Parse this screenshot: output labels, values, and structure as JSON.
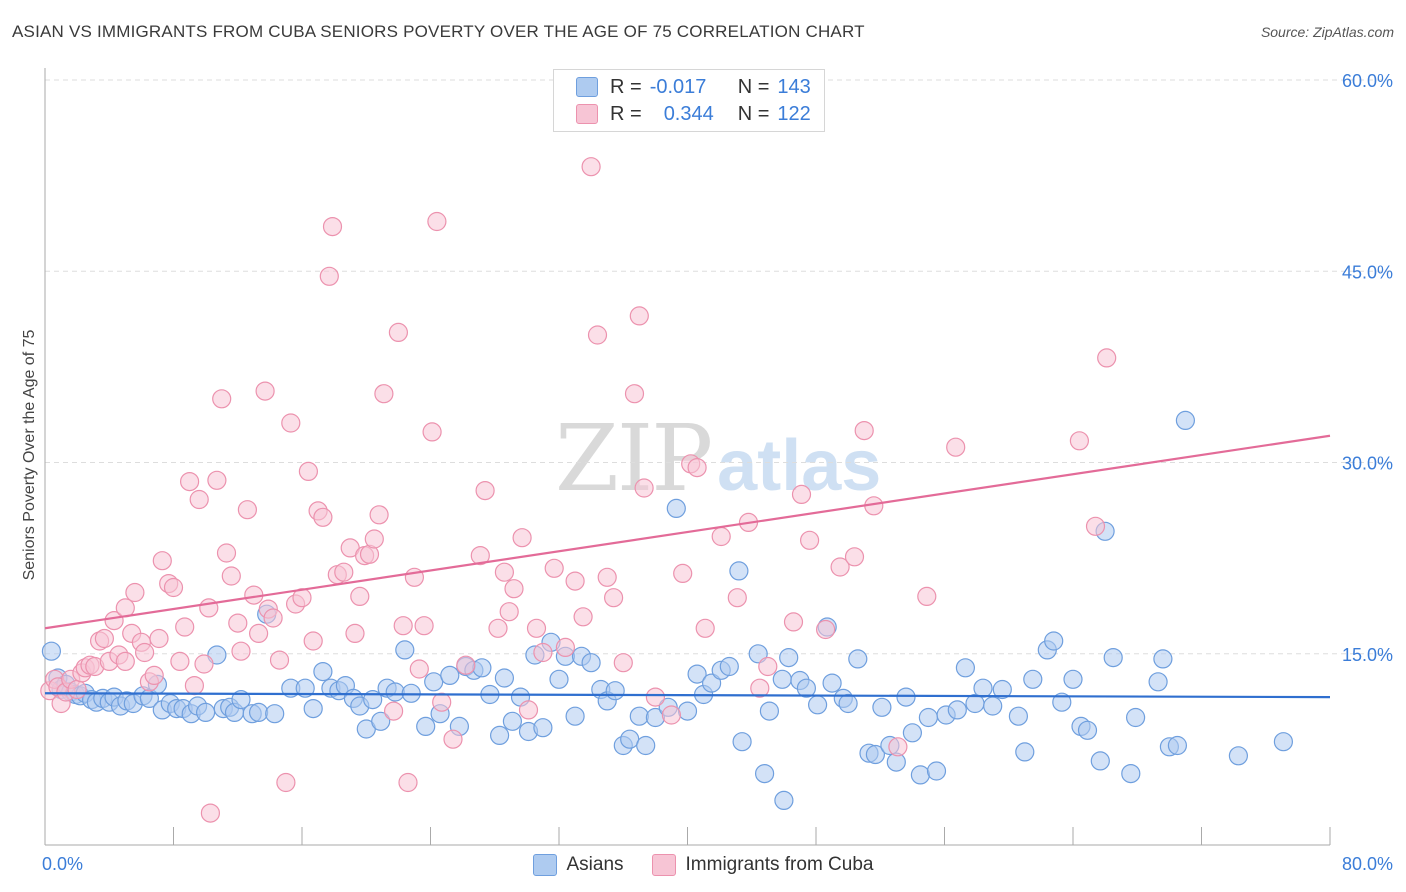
{
  "title": "ASIAN VS IMMIGRANTS FROM CUBA SENIORS POVERTY OVER THE AGE OF 75 CORRELATION CHART",
  "source": "Source: ZipAtlas.com",
  "watermark": {
    "zip": "ZIP",
    "atlas": "atlas"
  },
  "legend": {
    "rows": [
      {
        "r_label": "R =",
        "r_value": "-0.017",
        "n_label": "N =",
        "n_value": "143"
      },
      {
        "r_label": "R =",
        "r_value": "0.344",
        "n_label": "N =",
        "n_value": "122"
      }
    ]
  },
  "bottom_legend": [
    "Asians",
    "Immigrants from Cuba"
  ],
  "chart_data": {
    "type": "scatter",
    "title": "ASIAN VS IMMIGRANTS FROM CUBA SENIORS POVERTY OVER THE AGE OF 75 CORRELATION CHART",
    "xlabel": "",
    "ylabel": "Seniors Poverty Over the Age of 75",
    "xlim": [
      0,
      80
    ],
    "ylim": [
      0,
      60
    ],
    "x_tick_labels": [
      "0.0%",
      "80.0%"
    ],
    "y_ticks": [
      15,
      30,
      45,
      60
    ],
    "y_tick_labels": [
      "15.0%",
      "30.0%",
      "45.0%",
      "60.0%"
    ],
    "grid": "horizontal dashed",
    "legend_position": "top-center",
    "colors": {
      "asians_fill": "#aecbf0",
      "asians_stroke": "#6f9fde",
      "asians_line": "#2f6fcf",
      "cuba_fill": "#f7c5d5",
      "cuba_stroke": "#ec92ae",
      "cuba_line": "#e36b98",
      "tick_label": "#3b7dd8",
      "grid": "#dddddd"
    },
    "series": [
      {
        "name": "Asians",
        "trend": {
          "x": [
            0,
            80
          ],
          "y": [
            11.9,
            11.6
          ]
        },
        "points": [
          [
            0.4,
            15.2
          ],
          [
            0.8,
            13.1
          ],
          [
            1.0,
            12.2
          ],
          [
            1.3,
            12.6
          ],
          [
            1.6,
            12.0
          ],
          [
            1.9,
            11.8
          ],
          [
            2.2,
            11.7
          ],
          [
            2.5,
            11.9
          ],
          [
            2.9,
            11.4
          ],
          [
            3.2,
            11.2
          ],
          [
            3.6,
            11.5
          ],
          [
            4.0,
            11.2
          ],
          [
            4.3,
            11.6
          ],
          [
            4.7,
            10.9
          ],
          [
            5.1,
            11.3
          ],
          [
            5.5,
            11.1
          ],
          [
            6.1,
            11.7
          ],
          [
            6.5,
            11.5
          ],
          [
            7.0,
            12.6
          ],
          [
            7.3,
            10.6
          ],
          [
            7.8,
            11.1
          ],
          [
            8.2,
            10.7
          ],
          [
            8.6,
            10.7
          ],
          [
            9.1,
            10.3
          ],
          [
            9.5,
            10.9
          ],
          [
            10.0,
            10.4
          ],
          [
            10.7,
            14.9
          ],
          [
            11.1,
            10.7
          ],
          [
            11.5,
            10.8
          ],
          [
            11.8,
            10.4
          ],
          [
            12.2,
            11.4
          ],
          [
            12.9,
            10.3
          ],
          [
            13.3,
            10.4
          ],
          [
            13.8,
            18.1
          ],
          [
            14.3,
            10.3
          ],
          [
            15.3,
            12.3
          ],
          [
            16.2,
            12.3
          ],
          [
            16.7,
            10.7
          ],
          [
            17.3,
            13.6
          ],
          [
            17.8,
            12.3
          ],
          [
            18.3,
            12.1
          ],
          [
            18.7,
            12.5
          ],
          [
            19.2,
            11.5
          ],
          [
            19.6,
            10.9
          ],
          [
            20.0,
            9.1
          ],
          [
            20.4,
            11.4
          ],
          [
            20.9,
            9.7
          ],
          [
            21.3,
            12.3
          ],
          [
            21.8,
            12.0
          ],
          [
            22.4,
            15.3
          ],
          [
            22.8,
            11.9
          ],
          [
            23.7,
            9.3
          ],
          [
            24.2,
            12.8
          ],
          [
            24.6,
            10.3
          ],
          [
            25.2,
            13.3
          ],
          [
            25.8,
            9.3
          ],
          [
            26.2,
            14.0
          ],
          [
            26.7,
            13.7
          ],
          [
            27.2,
            13.9
          ],
          [
            27.7,
            11.8
          ],
          [
            28.3,
            8.6
          ],
          [
            28.6,
            13.1
          ],
          [
            29.1,
            9.7
          ],
          [
            29.6,
            11.6
          ],
          [
            30.1,
            8.9
          ],
          [
            30.5,
            14.9
          ],
          [
            31.0,
            9.2
          ],
          [
            31.5,
            15.9
          ],
          [
            32.0,
            13.0
          ],
          [
            32.4,
            14.8
          ],
          [
            33.0,
            10.1
          ],
          [
            33.4,
            14.8
          ],
          [
            34.0,
            14.3
          ],
          [
            34.6,
            12.2
          ],
          [
            35.0,
            11.3
          ],
          [
            35.5,
            12.1
          ],
          [
            36.0,
            7.8
          ],
          [
            36.4,
            8.3
          ],
          [
            37.0,
            10.1
          ],
          [
            37.4,
            7.8
          ],
          [
            38.0,
            10.0
          ],
          [
            38.8,
            10.8
          ],
          [
            39.3,
            26.4
          ],
          [
            40.0,
            10.5
          ],
          [
            40.6,
            13.4
          ],
          [
            41.0,
            11.8
          ],
          [
            41.5,
            12.7
          ],
          [
            42.1,
            13.7
          ],
          [
            42.6,
            14.0
          ],
          [
            43.2,
            21.5
          ],
          [
            43.4,
            8.1
          ],
          [
            44.4,
            15.0
          ],
          [
            44.8,
            5.6
          ],
          [
            45.1,
            10.5
          ],
          [
            45.9,
            13.0
          ],
          [
            46.3,
            14.7
          ],
          [
            47.0,
            12.9
          ],
          [
            47.4,
            12.3
          ],
          [
            48.1,
            11.0
          ],
          [
            48.7,
            17.1
          ],
          [
            49.0,
            12.7
          ],
          [
            49.7,
            11.5
          ],
          [
            50.0,
            11.1
          ],
          [
            50.6,
            14.6
          ],
          [
            51.3,
            7.2
          ],
          [
            51.7,
            7.1
          ],
          [
            52.1,
            10.8
          ],
          [
            52.6,
            7.8
          ],
          [
            53.0,
            6.5
          ],
          [
            53.6,
            11.6
          ],
          [
            54.0,
            8.8
          ],
          [
            54.5,
            5.5
          ],
          [
            55.0,
            10.0
          ],
          [
            55.5,
            5.8
          ],
          [
            56.1,
            10.2
          ],
          [
            56.8,
            10.6
          ],
          [
            57.3,
            13.9
          ],
          [
            57.9,
            11.1
          ],
          [
            58.4,
            12.3
          ],
          [
            59.0,
            10.9
          ],
          [
            59.6,
            12.2
          ],
          [
            60.6,
            10.1
          ],
          [
            61.0,
            7.3
          ],
          [
            61.5,
            13.0
          ],
          [
            62.4,
            15.3
          ],
          [
            62.8,
            16.0
          ],
          [
            63.3,
            11.2
          ],
          [
            64.0,
            13.0
          ],
          [
            64.5,
            9.3
          ],
          [
            64.9,
            9.0
          ],
          [
            65.7,
            6.6
          ],
          [
            66.0,
            24.6
          ],
          [
            66.5,
            14.7
          ],
          [
            67.6,
            5.6
          ],
          [
            67.9,
            10.0
          ],
          [
            69.3,
            12.8
          ],
          [
            69.6,
            14.6
          ],
          [
            70.0,
            7.7
          ],
          [
            70.5,
            7.8
          ],
          [
            71.0,
            33.3
          ],
          [
            74.3,
            7.0
          ],
          [
            77.1,
            8.1
          ],
          [
            46.0,
            3.5
          ]
        ]
      },
      {
        "name": "Immigrants from Cuba",
        "trend": {
          "x": [
            0,
            80
          ],
          "y": [
            17.0,
            32.1
          ]
        },
        "points": [
          [
            0.3,
            12.1
          ],
          [
            0.6,
            13.0
          ],
          [
            0.8,
            12.4
          ],
          [
            1.0,
            11.1
          ],
          [
            1.3,
            12.0
          ],
          [
            1.6,
            13.0
          ],
          [
            2.0,
            12.2
          ],
          [
            2.3,
            13.5
          ],
          [
            2.5,
            13.9
          ],
          [
            2.8,
            14.1
          ],
          [
            3.1,
            14.0
          ],
          [
            3.4,
            16.0
          ],
          [
            3.7,
            16.2
          ],
          [
            4.0,
            14.4
          ],
          [
            4.3,
            17.6
          ],
          [
            4.6,
            14.9
          ],
          [
            5.0,
            14.4
          ],
          [
            5.0,
            18.6
          ],
          [
            5.4,
            16.6
          ],
          [
            5.6,
            19.8
          ],
          [
            6.0,
            15.9
          ],
          [
            6.2,
            15.1
          ],
          [
            6.5,
            12.8
          ],
          [
            6.8,
            13.3
          ],
          [
            7.1,
            16.2
          ],
          [
            7.3,
            22.3
          ],
          [
            7.7,
            20.5
          ],
          [
            8.0,
            20.2
          ],
          [
            8.4,
            14.4
          ],
          [
            8.7,
            17.1
          ],
          [
            9.0,
            28.5
          ],
          [
            9.3,
            12.5
          ],
          [
            9.6,
            27.1
          ],
          [
            9.9,
            14.2
          ],
          [
            10.2,
            18.6
          ],
          [
            10.7,
            28.6
          ],
          [
            11.0,
            35.0
          ],
          [
            11.3,
            22.9
          ],
          [
            11.6,
            21.1
          ],
          [
            12.0,
            17.4
          ],
          [
            12.2,
            15.2
          ],
          [
            12.6,
            26.3
          ],
          [
            13.0,
            19.6
          ],
          [
            13.3,
            16.6
          ],
          [
            13.7,
            35.6
          ],
          [
            13.9,
            18.5
          ],
          [
            14.2,
            17.8
          ],
          [
            14.6,
            14.5
          ],
          [
            15.0,
            4.9
          ],
          [
            15.3,
            33.1
          ],
          [
            15.6,
            18.9
          ],
          [
            16.0,
            19.4
          ],
          [
            16.4,
            29.3
          ],
          [
            16.7,
            16.0
          ],
          [
            17.0,
            26.2
          ],
          [
            17.3,
            25.7
          ],
          [
            17.7,
            44.6
          ],
          [
            17.9,
            48.5
          ],
          [
            18.2,
            21.2
          ],
          [
            18.6,
            21.4
          ],
          [
            19.0,
            23.3
          ],
          [
            19.3,
            16.6
          ],
          [
            19.6,
            19.5
          ],
          [
            19.9,
            22.7
          ],
          [
            20.2,
            22.8
          ],
          [
            20.5,
            24.0
          ],
          [
            20.8,
            25.9
          ],
          [
            21.1,
            35.4
          ],
          [
            21.7,
            10.5
          ],
          [
            22.0,
            40.2
          ],
          [
            22.3,
            17.2
          ],
          [
            22.6,
            4.9
          ],
          [
            23.0,
            21.0
          ],
          [
            23.3,
            13.8
          ],
          [
            23.6,
            17.2
          ],
          [
            24.1,
            32.4
          ],
          [
            24.4,
            48.9
          ],
          [
            24.7,
            11.2
          ],
          [
            25.4,
            8.3
          ],
          [
            26.2,
            14.1
          ],
          [
            27.1,
            22.7
          ],
          [
            27.4,
            27.8
          ],
          [
            28.2,
            17.0
          ],
          [
            28.6,
            21.4
          ],
          [
            28.9,
            18.3
          ],
          [
            29.2,
            20.1
          ],
          [
            29.7,
            24.1
          ],
          [
            30.1,
            10.6
          ],
          [
            30.6,
            17.0
          ],
          [
            31.0,
            15.1
          ],
          [
            31.7,
            21.7
          ],
          [
            32.4,
            15.5
          ],
          [
            33.0,
            20.7
          ],
          [
            33.5,
            17.9
          ],
          [
            34.0,
            53.2
          ],
          [
            34.4,
            40.0
          ],
          [
            35.0,
            21.0
          ],
          [
            35.4,
            19.4
          ],
          [
            36.0,
            14.3
          ],
          [
            36.7,
            35.4
          ],
          [
            37.0,
            41.5
          ],
          [
            37.3,
            28.0
          ],
          [
            38.0,
            11.6
          ],
          [
            39.0,
            10.2
          ],
          [
            39.7,
            21.3
          ],
          [
            40.2,
            29.9
          ],
          [
            40.6,
            29.6
          ],
          [
            41.1,
            17.0
          ],
          [
            42.1,
            24.2
          ],
          [
            43.1,
            19.4
          ],
          [
            43.8,
            25.3
          ],
          [
            44.5,
            12.3
          ],
          [
            45.0,
            14.0
          ],
          [
            46.6,
            17.5
          ],
          [
            47.1,
            27.5
          ],
          [
            47.6,
            23.9
          ],
          [
            48.6,
            16.9
          ],
          [
            49.5,
            21.8
          ],
          [
            50.4,
            22.6
          ],
          [
            51.0,
            32.5
          ],
          [
            51.6,
            26.6
          ],
          [
            53.1,
            7.7
          ],
          [
            54.9,
            19.5
          ],
          [
            56.7,
            31.2
          ],
          [
            64.4,
            31.7
          ],
          [
            65.4,
            25.0
          ],
          [
            66.1,
            38.2
          ],
          [
            10.3,
            2.5
          ]
        ]
      }
    ]
  }
}
